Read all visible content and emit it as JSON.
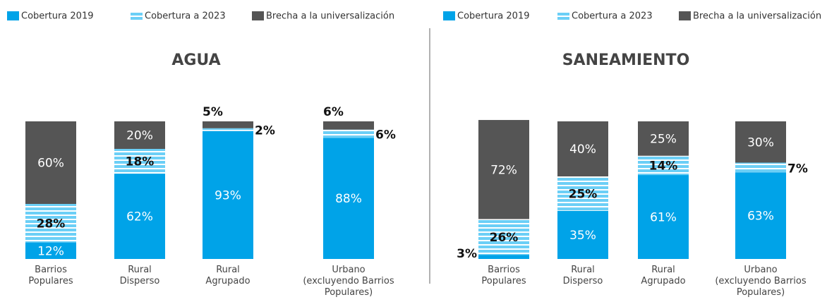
{
  "chart_data": [
    {
      "type": "bar",
      "stacked": true,
      "title": "AGUA",
      "categories": [
        "Barrios\nPopulares",
        "Rural\nDisperso",
        "Rural\nAgrupado",
        "Urbano\n(excluyendo Barrios\nPopulares)"
      ],
      "ylim": [
        0,
        100
      ],
      "series": [
        {
          "name": "Cobertura 2019",
          "color": "#00a3e8",
          "values": [
            12,
            62,
            93,
            88
          ],
          "value_labels": [
            "12%",
            "62%",
            "93%",
            "88%"
          ]
        },
        {
          "name": "Cobertura a 2023",
          "color": "#6ccff6",
          "pattern": "stripes",
          "values": [
            28,
            18,
            2,
            6
          ],
          "value_labels": [
            "28%",
            "18%",
            "2%",
            "6%"
          ]
        },
        {
          "name": "Brecha a la universalización",
          "color": "#555555",
          "values": [
            60,
            20,
            5,
            6
          ],
          "value_labels": [
            "60%",
            "20%",
            "5%",
            "6%"
          ]
        }
      ]
    },
    {
      "type": "bar",
      "stacked": true,
      "title": "SANEAMIENTO",
      "categories": [
        "Barrios\nPopulares",
        "Rural\nDisperso",
        "Rural\nAgrupado",
        "Urbano\n(excluyendo Barrios\nPopulares)"
      ],
      "ylim": [
        0,
        100
      ],
      "series": [
        {
          "name": "Cobertura 2019",
          "color": "#00a3e8",
          "values": [
            3,
            35,
            61,
            63
          ],
          "value_labels": [
            "3%",
            "35%",
            "61%",
            "63%"
          ]
        },
        {
          "name": "Cobertura a 2023",
          "color": "#6ccff6",
          "pattern": "stripes",
          "values": [
            26,
            25,
            14,
            7
          ],
          "value_labels": [
            "26%",
            "25%",
            "14%",
            "7%"
          ]
        },
        {
          "name": "Brecha a la universalización",
          "color": "#555555",
          "values": [
            72,
            40,
            25,
            30
          ],
          "value_labels": [
            "72%",
            "40%",
            "25%",
            "30%"
          ]
        }
      ]
    }
  ]
}
